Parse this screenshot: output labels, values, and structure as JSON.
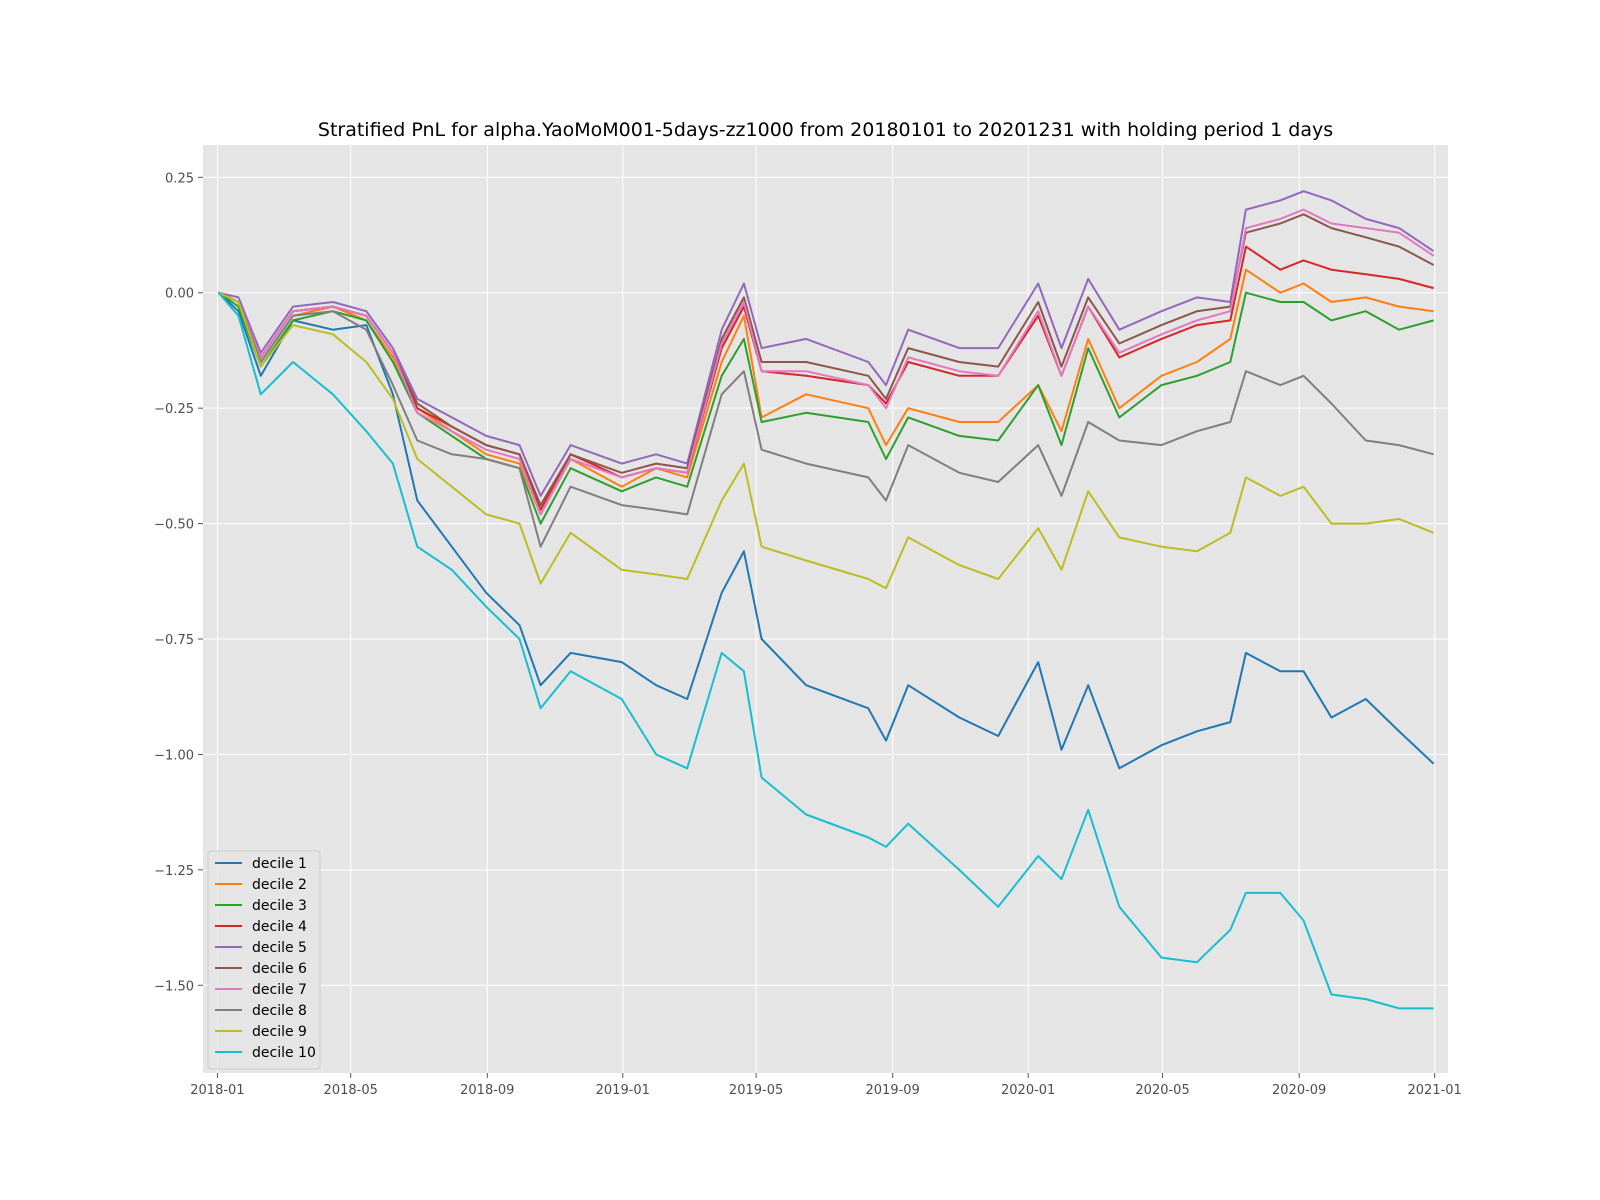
{
  "chart_data": {
    "type": "line",
    "title": "Stratified PnL for alpha.YaoMoM001-5days-zz1000 from 20180101 to 20201231 with holding period 1 days",
    "xlabel": "",
    "ylabel": "",
    "grid": true,
    "legend_position": "bottom-left",
    "background_color": "#e5e5e5",
    "xlim": [
      "2017-12-19",
      "2021-01-13"
    ],
    "ylim": [
      -1.69,
      0.32
    ],
    "x_ticks": [
      "2018-01",
      "2018-05",
      "2018-09",
      "2019-01",
      "2019-05",
      "2019-09",
      "2020-01",
      "2020-05",
      "2020-09",
      "2021-01"
    ],
    "y_ticks": [
      0.25,
      0.0,
      -0.25,
      -0.5,
      -0.75,
      -1.0,
      -1.25,
      -1.5
    ],
    "y_tick_labels": [
      "0.25",
      "0.00",
      "−0.25",
      "−0.50",
      "−0.75",
      "−1.00",
      "−1.25",
      "−1.50"
    ],
    "x": [
      "2018-01-02",
      "2018-01-20",
      "2018-02-09",
      "2018-03-10",
      "2018-04-15",
      "2018-05-15",
      "2018-06-08",
      "2018-06-30",
      "2018-07-31",
      "2018-08-31",
      "2018-09-30",
      "2018-10-19",
      "2018-11-15",
      "2018-12-31",
      "2019-01-31",
      "2019-02-28",
      "2019-03-31",
      "2019-04-20",
      "2019-05-06",
      "2019-06-15",
      "2019-08-10",
      "2019-08-26",
      "2019-09-15",
      "2019-10-31",
      "2019-12-05",
      "2020-01-10",
      "2020-01-31",
      "2020-02-24",
      "2020-03-23",
      "2020-04-30",
      "2020-06-01",
      "2020-07-01",
      "2020-07-15",
      "2020-08-15",
      "2020-09-05",
      "2020-09-30",
      "2020-10-31",
      "2020-11-30",
      "2020-12-31"
    ],
    "series": [
      {
        "name": "decile 1",
        "color": "#1f77b4",
        "values": [
          0.0,
          -0.04,
          -0.18,
          -0.06,
          -0.08,
          -0.07,
          -0.22,
          -0.45,
          -0.55,
          -0.65,
          -0.72,
          -0.85,
          -0.78,
          -0.8,
          -0.85,
          -0.88,
          -0.65,
          -0.56,
          -0.75,
          -0.85,
          -0.9,
          -0.97,
          -0.85,
          -0.92,
          -0.96,
          -0.8,
          -0.99,
          -0.85,
          -1.03,
          -0.98,
          -0.95,
          -0.93,
          -0.78,
          -0.82,
          -0.82,
          -0.92,
          -0.88,
          -0.95,
          -1.02
        ]
      },
      {
        "name": "decile 2",
        "color": "#ff7f0e",
        "values": [
          0.0,
          -0.02,
          -0.15,
          -0.05,
          -0.03,
          -0.06,
          -0.14,
          -0.25,
          -0.3,
          -0.35,
          -0.37,
          -0.48,
          -0.36,
          -0.42,
          -0.38,
          -0.4,
          -0.15,
          -0.05,
          -0.27,
          -0.22,
          -0.25,
          -0.33,
          -0.25,
          -0.28,
          -0.28,
          -0.2,
          -0.3,
          -0.1,
          -0.25,
          -0.18,
          -0.15,
          -0.1,
          0.05,
          0.0,
          0.02,
          -0.02,
          -0.01,
          -0.03,
          -0.04
        ]
      },
      {
        "name": "decile 3",
        "color": "#2ca02c",
        "values": [
          0.0,
          -0.03,
          -0.16,
          -0.06,
          -0.04,
          -0.06,
          -0.15,
          -0.26,
          -0.31,
          -0.36,
          -0.38,
          -0.5,
          -0.38,
          -0.43,
          -0.4,
          -0.42,
          -0.18,
          -0.1,
          -0.28,
          -0.26,
          -0.28,
          -0.36,
          -0.27,
          -0.31,
          -0.32,
          -0.2,
          -0.33,
          -0.12,
          -0.27,
          -0.2,
          -0.18,
          -0.15,
          0.0,
          -0.02,
          -0.02,
          -0.06,
          -0.04,
          -0.08,
          -0.06
        ]
      },
      {
        "name": "decile 4",
        "color": "#d62728",
        "values": [
          0.0,
          -0.02,
          -0.14,
          -0.04,
          -0.03,
          -0.05,
          -0.13,
          -0.25,
          -0.29,
          -0.33,
          -0.35,
          -0.47,
          -0.35,
          -0.4,
          -0.38,
          -0.39,
          -0.12,
          -0.03,
          -0.17,
          -0.18,
          -0.2,
          -0.24,
          -0.15,
          -0.18,
          -0.18,
          -0.05,
          -0.18,
          -0.03,
          -0.14,
          -0.1,
          -0.07,
          -0.06,
          0.1,
          0.05,
          0.07,
          0.05,
          0.04,
          0.03,
          0.01
        ]
      },
      {
        "name": "decile 5",
        "color": "#9467bd",
        "values": [
          0.0,
          -0.01,
          -0.13,
          -0.03,
          -0.02,
          -0.04,
          -0.12,
          -0.23,
          -0.27,
          -0.31,
          -0.33,
          -0.44,
          -0.33,
          -0.37,
          -0.35,
          -0.37,
          -0.08,
          0.02,
          -0.12,
          -0.1,
          -0.15,
          -0.2,
          -0.08,
          -0.12,
          -0.12,
          0.02,
          -0.12,
          0.03,
          -0.08,
          -0.04,
          -0.01,
          -0.02,
          0.18,
          0.2,
          0.22,
          0.2,
          0.16,
          0.14,
          0.09
        ]
      },
      {
        "name": "decile 6",
        "color": "#8c564b",
        "values": [
          0.0,
          -0.02,
          -0.14,
          -0.04,
          -0.03,
          -0.05,
          -0.13,
          -0.24,
          -0.29,
          -0.33,
          -0.35,
          -0.46,
          -0.35,
          -0.39,
          -0.37,
          -0.38,
          -0.1,
          -0.01,
          -0.15,
          -0.15,
          -0.18,
          -0.23,
          -0.12,
          -0.15,
          -0.16,
          -0.02,
          -0.16,
          -0.01,
          -0.11,
          -0.07,
          -0.04,
          -0.03,
          0.13,
          0.15,
          0.17,
          0.14,
          0.12,
          0.1,
          0.06
        ]
      },
      {
        "name": "decile 7",
        "color": "#e377c2",
        "values": [
          0.0,
          -0.02,
          -0.14,
          -0.04,
          -0.03,
          -0.05,
          -0.13,
          -0.26,
          -0.3,
          -0.34,
          -0.36,
          -0.48,
          -0.36,
          -0.4,
          -0.38,
          -0.39,
          -0.11,
          -0.02,
          -0.17,
          -0.17,
          -0.2,
          -0.25,
          -0.14,
          -0.17,
          -0.18,
          -0.04,
          -0.18,
          -0.03,
          -0.13,
          -0.09,
          -0.06,
          -0.04,
          0.14,
          0.16,
          0.18,
          0.15,
          0.14,
          0.13,
          0.08
        ]
      },
      {
        "name": "decile 8",
        "color": "#7f7f7f",
        "values": [
          0.0,
          -0.02,
          -0.15,
          -0.05,
          -0.04,
          -0.08,
          -0.2,
          -0.32,
          -0.35,
          -0.36,
          -0.38,
          -0.55,
          -0.42,
          -0.46,
          -0.47,
          -0.48,
          -0.22,
          -0.17,
          -0.34,
          -0.37,
          -0.4,
          -0.45,
          -0.33,
          -0.39,
          -0.41,
          -0.33,
          -0.44,
          -0.28,
          -0.32,
          -0.33,
          -0.3,
          -0.28,
          -0.17,
          -0.2,
          -0.18,
          -0.24,
          -0.32,
          -0.33,
          -0.35
        ]
      },
      {
        "name": "decile 9",
        "color": "#bcbd22",
        "values": [
          0.0,
          -0.02,
          -0.16,
          -0.07,
          -0.09,
          -0.15,
          -0.23,
          -0.36,
          -0.42,
          -0.48,
          -0.5,
          -0.63,
          -0.52,
          -0.6,
          -0.61,
          -0.62,
          -0.45,
          -0.37,
          -0.55,
          -0.58,
          -0.62,
          -0.64,
          -0.53,
          -0.59,
          -0.62,
          -0.51,
          -0.6,
          -0.43,
          -0.53,
          -0.55,
          -0.56,
          -0.52,
          -0.4,
          -0.44,
          -0.42,
          -0.5,
          -0.5,
          -0.49,
          -0.52
        ]
      },
      {
        "name": "decile 10",
        "color": "#17becf",
        "values": [
          0.0,
          -0.05,
          -0.22,
          -0.15,
          -0.22,
          -0.3,
          -0.37,
          -0.55,
          -0.6,
          -0.68,
          -0.75,
          -0.9,
          -0.82,
          -0.88,
          -1.0,
          -1.03,
          -0.78,
          -0.82,
          -1.05,
          -1.13,
          -1.18,
          -1.2,
          -1.15,
          -1.25,
          -1.33,
          -1.22,
          -1.27,
          -1.12,
          -1.33,
          -1.44,
          -1.45,
          -1.38,
          -1.3,
          -1.3,
          -1.36,
          -1.52,
          -1.53,
          -1.55,
          -1.55
        ]
      }
    ]
  }
}
